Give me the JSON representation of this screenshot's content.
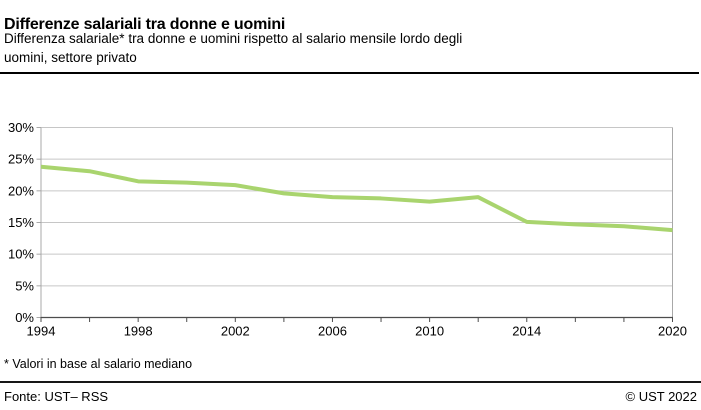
{
  "chart_data": {
    "type": "line",
    "title": "Differenze salariali tra donne e uomini",
    "subtitle_lines": [
      "Differenza salariale* tra donne e uomini rispetto al salario mensile lordo degli",
      "uomini, settore privato"
    ],
    "x": [
      1994,
      1996,
      1998,
      2000,
      2002,
      2004,
      2006,
      2008,
      2010,
      2012,
      2014,
      2016,
      2018,
      2020
    ],
    "values": [
      23.8,
      23.1,
      21.5,
      21.3,
      20.9,
      19.6,
      19.0,
      18.8,
      18.3,
      19.0,
      15.1,
      14.7,
      14.4,
      13.8
    ],
    "xlim": [
      1994,
      2020
    ],
    "ylim": [
      0,
      30
    ],
    "y_ticks": [
      {
        "value": 0,
        "label": "0%"
      },
      {
        "value": 5,
        "label": "5%"
      },
      {
        "value": 10,
        "label": "10%"
      },
      {
        "value": 15,
        "label": "15%"
      },
      {
        "value": 20,
        "label": "20%"
      },
      {
        "value": 25,
        "label": "25%"
      },
      {
        "value": 30,
        "label": "30%"
      }
    ],
    "x_labeled_years": [
      1994,
      1998,
      2002,
      2006,
      2010,
      2014,
      2020
    ],
    "grid": "horizontal",
    "legend": "none",
    "colors": {
      "line": "#a9d46e",
      "grid": "#c6c6c6",
      "axis_light": "#a8a8a8",
      "axis_dark": "#4d4d4d",
      "rule": "#000000"
    }
  },
  "footnote": "* Valori in base al salario mediano",
  "footer": {
    "source": "Fonte: UST– RSS",
    "copyright": "© UST 2022"
  }
}
